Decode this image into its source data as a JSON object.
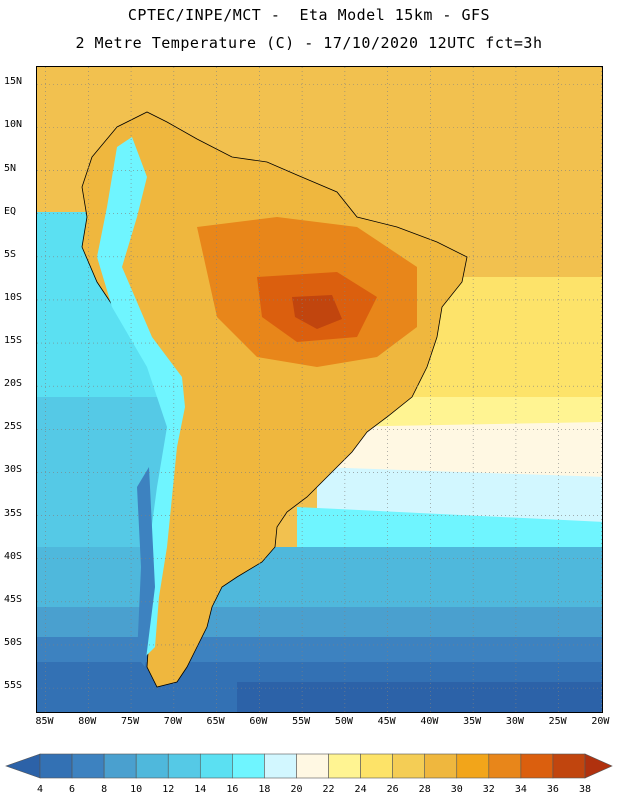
{
  "header": {
    "line1": "CPTEC/INPE/MCT -  Eta Model 15km - GFS",
    "line2": "2 Metre Temperature (C) - 17/10/2020 12UTC fct=3h"
  },
  "map": {
    "lat_labels": [
      "15N",
      "10N",
      "5N",
      "EQ",
      "5S",
      "10S",
      "15S",
      "20S",
      "25S",
      "30S",
      "35S",
      "40S",
      "45S",
      "50S",
      "55S"
    ],
    "lon_labels": [
      "85W",
      "80W",
      "75W",
      "70W",
      "65W",
      "60W",
      "55W",
      "50W",
      "45W",
      "40W",
      "35W",
      "30W",
      "25W",
      "20W"
    ],
    "extent": {
      "lon_min": -86,
      "lon_max": -19.7,
      "lat_min": -58,
      "lat_max": 17
    }
  },
  "legend": {
    "units": "C",
    "levels": [
      "4",
      "6",
      "8",
      "10",
      "12",
      "14",
      "16",
      "18",
      "20",
      "22",
      "24",
      "26",
      "28",
      "30",
      "32",
      "34",
      "36",
      "38"
    ],
    "colors": [
      "#2c62a8",
      "#3371b4",
      "#3d82c0",
      "#4aa0cf",
      "#4fb8dc",
      "#55c9e6",
      "#5be0f2",
      "#6ff5ff",
      "#d2f7ff",
      "#fff8e3",
      "#fff492",
      "#fde368",
      "#f4cd55",
      "#efb73e",
      "#f2a51a",
      "#e8861a",
      "#db5f0e",
      "#c1450e",
      "#b0310e"
    ]
  }
}
